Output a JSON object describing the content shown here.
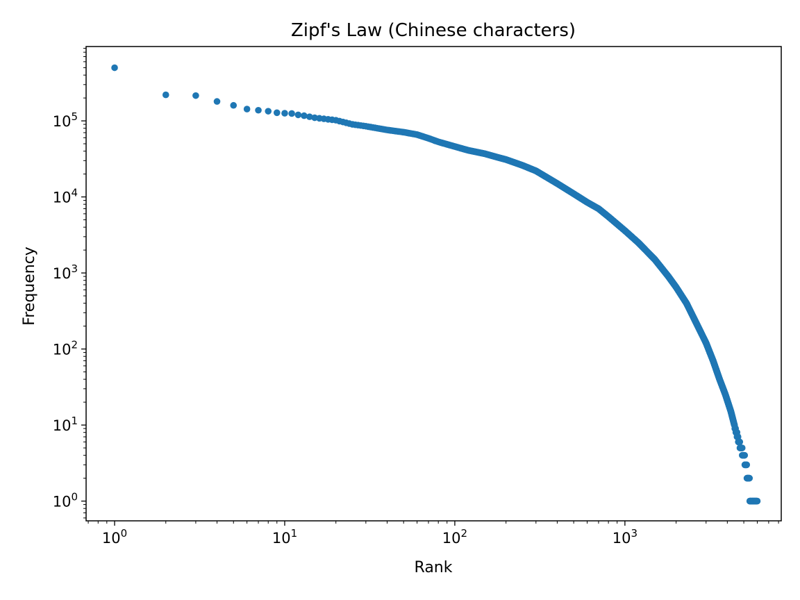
{
  "chart_data": {
    "type": "scatter",
    "title": "Zipf's Law (Chinese characters)",
    "xlabel": "Rank",
    "ylabel": "Frequency",
    "xscale": "log",
    "yscale": "log",
    "xlim": [
      0.68,
      8300
    ],
    "ylim": [
      0.55,
      950000
    ],
    "grid": false,
    "legend": "none",
    "marker_color": "#1f77b4",
    "x_ticks": [
      {
        "base": "10",
        "exp": "0",
        "value": 1
      },
      {
        "base": "10",
        "exp": "1",
        "value": 10
      },
      {
        "base": "10",
        "exp": "2",
        "value": 100
      },
      {
        "base": "10",
        "exp": "3",
        "value": 1000
      }
    ],
    "y_ticks": [
      {
        "base": "10",
        "exp": "0",
        "value": 1
      },
      {
        "base": "10",
        "exp": "1",
        "value": 10
      },
      {
        "base": "10",
        "exp": "2",
        "value": 100
      },
      {
        "base": "10",
        "exp": "3",
        "value": 1000
      },
      {
        "base": "10",
        "exp": "4",
        "value": 10000
      },
      {
        "base": "10",
        "exp": "5",
        "value": 100000
      }
    ],
    "points": [
      [
        1,
        500000
      ],
      [
        2,
        220000
      ],
      [
        3,
        215000
      ],
      [
        4,
        180000
      ],
      [
        5,
        160000
      ],
      [
        6,
        143000
      ],
      [
        7,
        138000
      ],
      [
        8,
        134000
      ],
      [
        9,
        128000
      ],
      [
        10,
        126000
      ],
      [
        11,
        125000
      ],
      [
        12,
        120000
      ],
      [
        13,
        117000
      ],
      [
        15,
        110000
      ],
      [
        20,
        102000
      ],
      [
        25,
        90000
      ],
      [
        30,
        85000
      ],
      [
        40,
        76000
      ],
      [
        50,
        71000
      ],
      [
        60,
        66000
      ],
      [
        70,
        59000
      ],
      [
        80,
        53000
      ],
      [
        100,
        46000
      ],
      [
        120,
        41000
      ],
      [
        150,
        37000
      ],
      [
        180,
        33000
      ],
      [
        200,
        31000
      ],
      [
        250,
        26000
      ],
      [
        300,
        22000
      ],
      [
        400,
        15000
      ],
      [
        500,
        11000
      ],
      [
        600,
        8500
      ],
      [
        700,
        7000
      ],
      [
        800,
        5500
      ],
      [
        1000,
        3600
      ],
      [
        1200,
        2500
      ],
      [
        1500,
        1500
      ],
      [
        1800,
        900
      ],
      [
        2000,
        650
      ],
      [
        2300,
        400
      ],
      [
        2600,
        230
      ],
      [
        3000,
        120
      ],
      [
        3300,
        70
      ],
      [
        3600,
        40
      ],
      [
        3900,
        25
      ],
      [
        4200,
        15
      ],
      [
        4400,
        10
      ],
      [
        4600,
        7
      ],
      [
        4800,
        5
      ],
      [
        5000,
        4
      ],
      [
        5150,
        3
      ],
      [
        5300,
        2
      ],
      [
        5600,
        1
      ],
      [
        6000,
        1
      ]
    ]
  }
}
